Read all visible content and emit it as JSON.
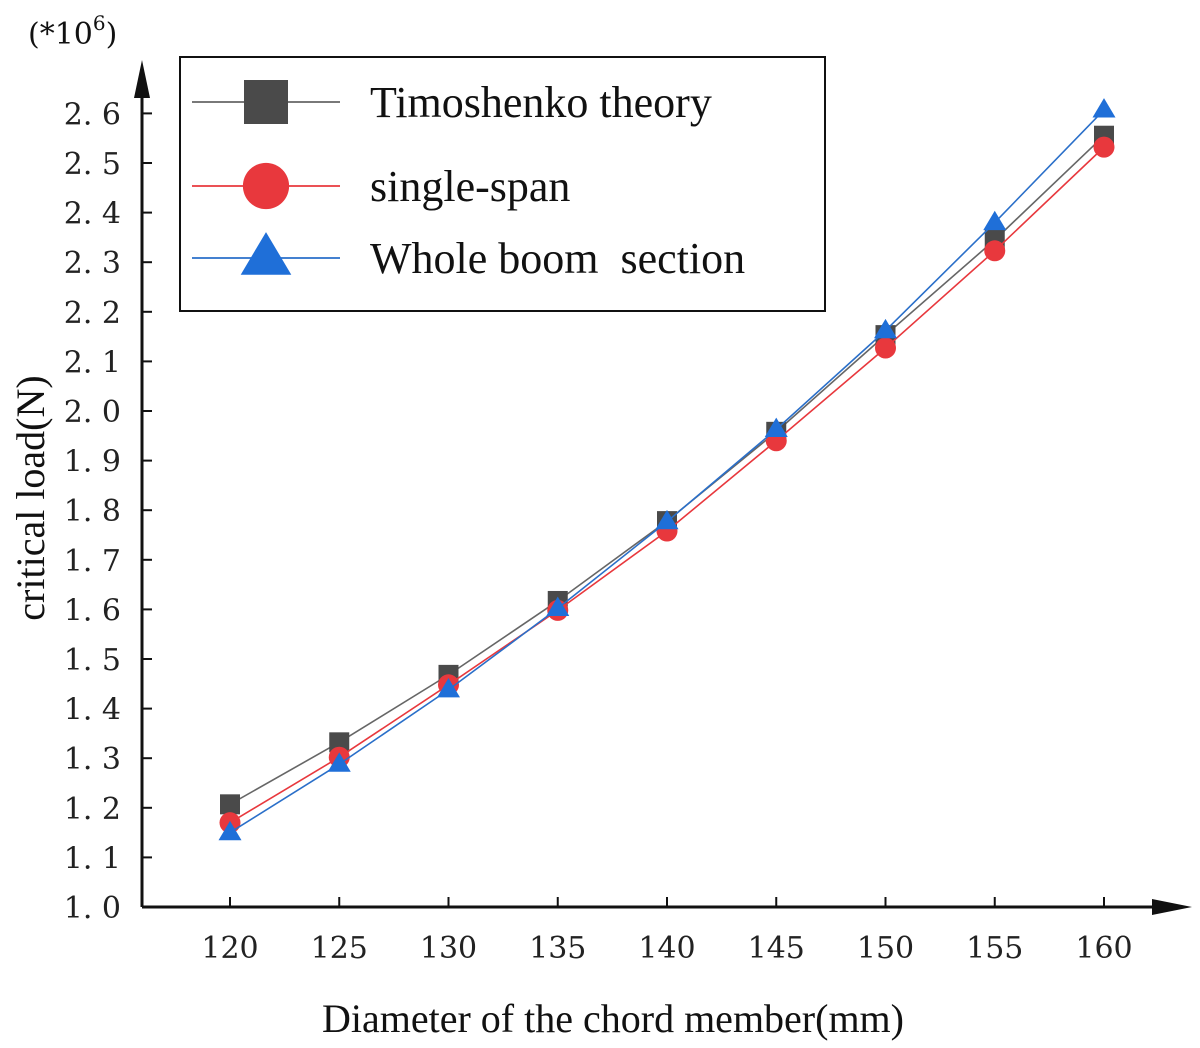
{
  "chart_data": {
    "type": "line",
    "title": "",
    "xlabel": "Diameter of the chord member(mm)",
    "ylabel": "critical load(N)",
    "y_multiplier": "(*10",
    "y_multiplier_exp": "6",
    "y_multiplier_close": ")",
    "x": [
      120,
      125,
      130,
      135,
      140,
      145,
      150,
      155,
      160
    ],
    "x_tick_labels": [
      "120",
      "125",
      "130",
      "135",
      "140",
      "145",
      "150",
      "155",
      "160"
    ],
    "y_ticks": [
      1.0,
      1.1,
      1.2,
      1.3,
      1.4,
      1.5,
      1.6,
      1.7,
      1.8,
      1.9,
      2.0,
      2.1,
      2.2,
      2.3,
      2.4,
      2.5,
      2.6
    ],
    "y_tick_labels": [
      "1. 0",
      "1. 1",
      "1. 2",
      "1. 3",
      "1. 4",
      "1. 5",
      "1. 6",
      "1. 7",
      "1. 8",
      "1. 9",
      "2. 0",
      "2. 1",
      "2. 2",
      "2. 3",
      "2. 4",
      "2. 5",
      "2. 6"
    ],
    "xlim": [
      115,
      165
    ],
    "ylim": [
      1.0,
      2.7
    ],
    "grid": false,
    "legend_position": "top-left",
    "series": [
      {
        "name": "Timoshenko theory",
        "marker": "square",
        "color": "#4a4a4a",
        "line_color": "#666666",
        "values": [
          1.207,
          1.332,
          1.468,
          1.617,
          1.778,
          1.958,
          2.153,
          2.345,
          2.555
        ]
      },
      {
        "name": "single-span",
        "marker": "circle",
        "color": "#e8383d",
        "line_color": "#e8383d",
        "values": [
          1.17,
          1.302,
          1.448,
          1.598,
          1.758,
          1.94,
          2.127,
          2.323,
          2.532
        ]
      },
      {
        "name": "Whole boom  section",
        "marker": "triangle",
        "color": "#1f6fd8",
        "line_color": "#2a6fc9",
        "values": [
          1.15,
          1.288,
          1.438,
          1.602,
          1.777,
          1.963,
          2.162,
          2.38,
          2.607
        ]
      }
    ]
  }
}
